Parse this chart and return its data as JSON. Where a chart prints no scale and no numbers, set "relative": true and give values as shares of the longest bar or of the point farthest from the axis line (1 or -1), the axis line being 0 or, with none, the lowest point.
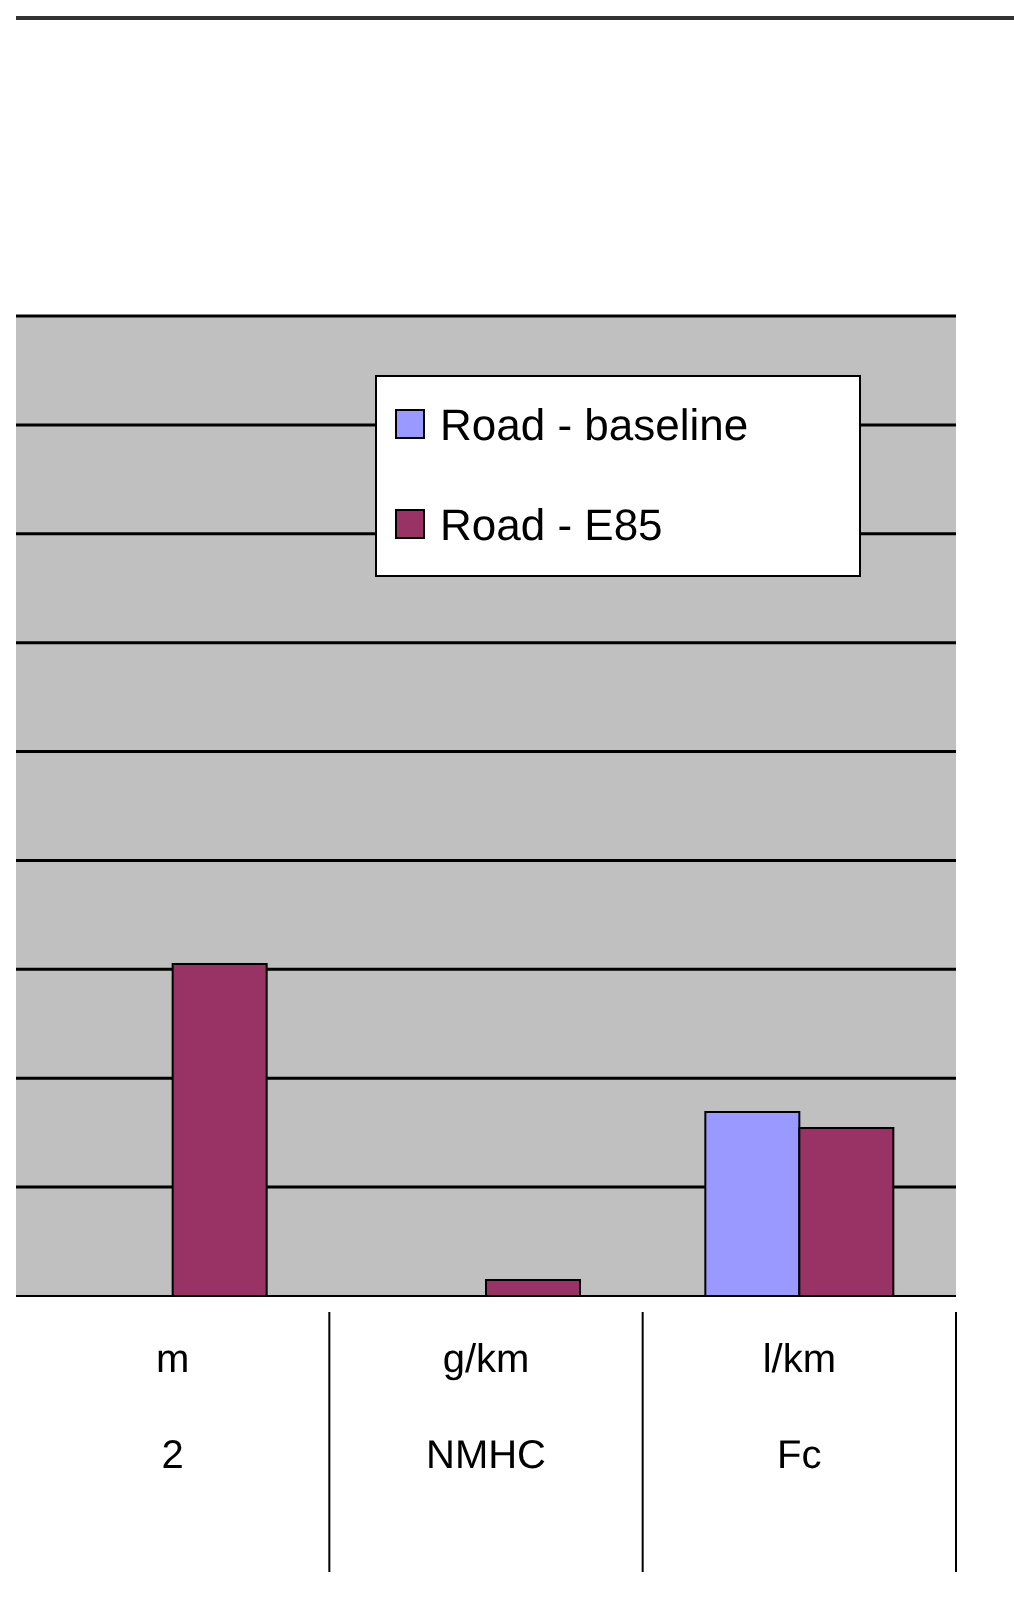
{
  "chart_data": {
    "type": "bar",
    "relative": true,
    "categories": [
      "2",
      "NMHC",
      "Fc"
    ],
    "annotations": [
      "m",
      "g/km",
      "l/km"
    ],
    "series": [
      {
        "name": "Road - baseline",
        "color": "#9999ff",
        "values": [
          null,
          0,
          0.554
        ]
      },
      {
        "name": "Road - E85",
        "color": "#993366",
        "values": [
          1,
          0.048,
          0.506
        ]
      }
    ],
    "grid": "y",
    "legend": "top right"
  }
}
